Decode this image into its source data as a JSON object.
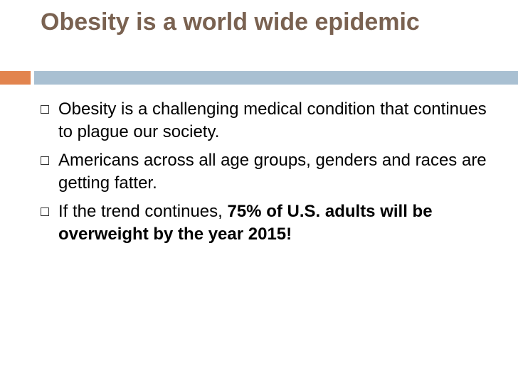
{
  "header": {
    "title": "Obesity is a world wide epidemic"
  },
  "bullets": [
    {
      "text": "Obesity is a challenging medical condition that continues to plague our society."
    },
    {
      "text": "Americans across all age groups, genders and races are getting fatter."
    },
    {
      "text": "If the trend continues, ",
      "emphasis": "75% of U.S. adults will be overweight by the year 2015!"
    }
  ]
}
